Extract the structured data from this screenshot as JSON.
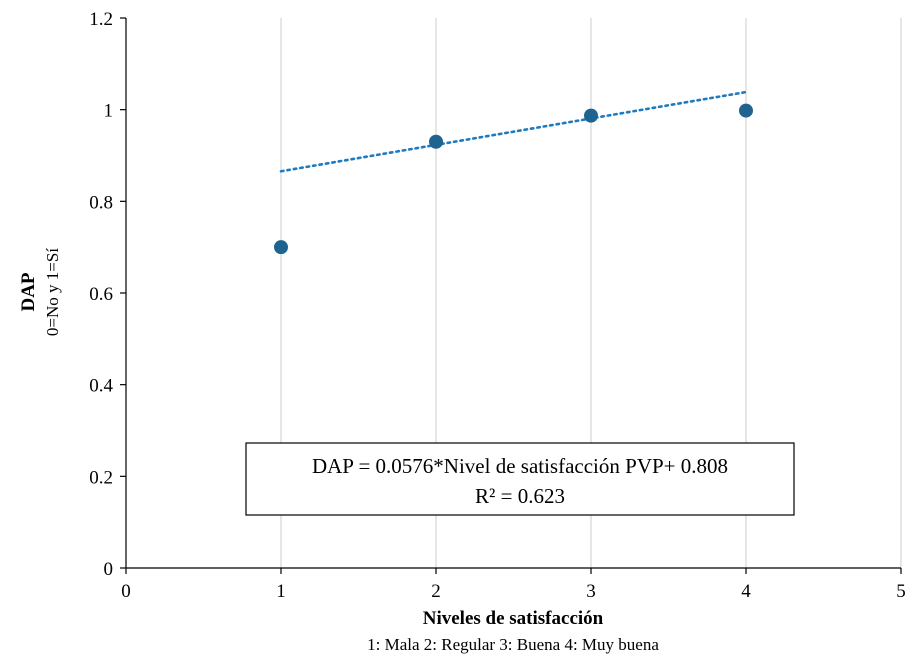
{
  "chart_data": {
    "type": "scatter",
    "x_label": "Niveles de satisfacción",
    "x_sublabel": "1: Mala 2: Regular 3: Buena 4: Muy buena",
    "y_label": "DAP",
    "y_sublabel": "0=No y 1=Sí",
    "xlim": [
      0,
      5
    ],
    "ylim": [
      0,
      1.2
    ],
    "x_ticks": [
      "0",
      "1",
      "2",
      "3",
      "4",
      "5"
    ],
    "y_ticks": [
      "0",
      "0.2",
      "0.4",
      "0.6",
      "0.8",
      "1",
      "1.2"
    ],
    "grid": "vertical",
    "series": [
      {
        "points": [
          {
            "x": 1,
            "y": 0.7
          },
          {
            "x": 2,
            "y": 0.93
          },
          {
            "x": 3,
            "y": 0.987
          },
          {
            "x": 4,
            "y": 0.998
          }
        ],
        "color": "#1f6391"
      }
    ],
    "trendline": {
      "type": "linear",
      "slope": 0.0576,
      "intercept": 0.808,
      "x_range": [
        1,
        4
      ],
      "style": "dotted",
      "color": "#1f7bbf"
    },
    "annotation": {
      "line1": "DAP = 0.0576*Nivel de satisfacción PVP+ 0.808",
      "line2": "R² = 0.623"
    }
  }
}
